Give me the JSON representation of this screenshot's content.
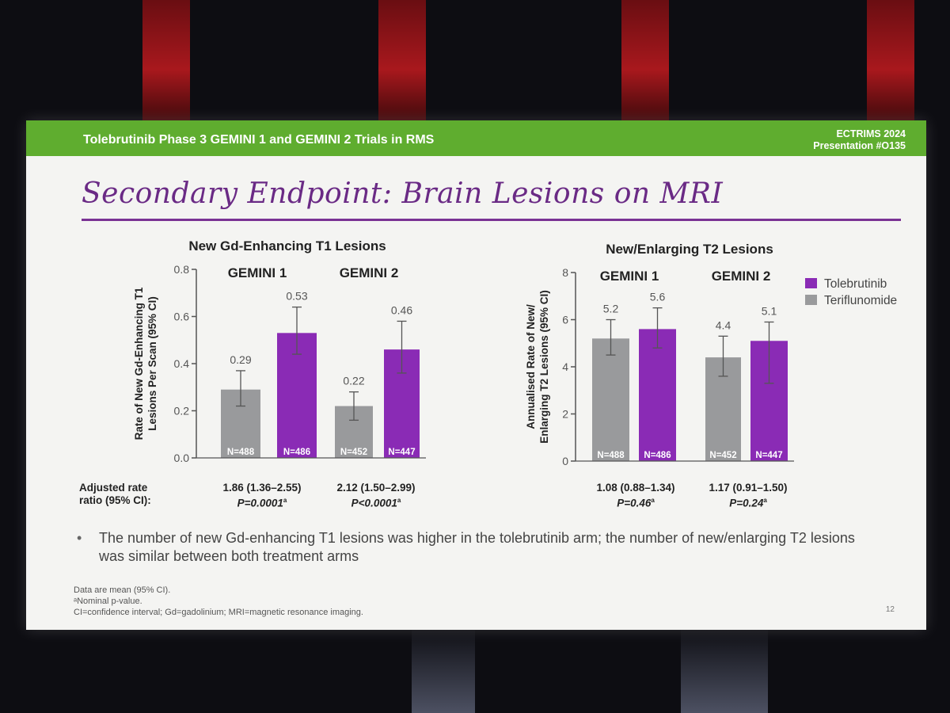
{
  "header": {
    "title": "Tolebrutinib Phase 3 GEMINI 1 and GEMINI 2 Trials in RMS",
    "conference": "ECTRIMS 2024",
    "presentation": "Presentation #O135"
  },
  "slide_title": "Secondary Endpoint: Brain Lesions on MRI",
  "colors": {
    "tolebrutinib": "#8a2bb5",
    "teriflunomide": "#999a9c",
    "header": "#5fad2f",
    "title": "#6a2a85"
  },
  "legend": [
    "Tolebrutinib",
    "Teriflunomide"
  ],
  "chart_data": [
    {
      "type": "bar",
      "title": "New Gd-Enhancing T1 Lesions",
      "ylabel": "Rate of New Gd-Enhancing T1 Lesions Per Scan (95% CI)",
      "ylim": [
        0,
        0.8
      ],
      "yticks": [
        "0.0",
        "0.2",
        "0.4",
        "0.6",
        "0.8"
      ],
      "groups": [
        "GEMINI 1",
        "GEMINI 2"
      ],
      "series": [
        {
          "name": "Teriflunomide",
          "values": [
            0.29,
            0.22
          ],
          "labels": [
            "0.29",
            "0.22"
          ],
          "ci_low": [
            0.22,
            0.16
          ],
          "ci_high": [
            0.37,
            0.28
          ],
          "n": [
            "N=488",
            "N=452"
          ]
        },
        {
          "name": "Tolebrutinib",
          "values": [
            0.53,
            0.46
          ],
          "labels": [
            "0.53",
            "0.46"
          ],
          "ci_low": [
            0.44,
            0.36
          ],
          "ci_high": [
            0.64,
            0.58
          ],
          "n": [
            "N=486",
            "N=447"
          ]
        }
      ]
    },
    {
      "type": "bar",
      "title": "New/Enlarging T2 Lesions",
      "ylabel": "Annualised Rate of New/ Enlarging T2 Lesions (95% CI)",
      "ylim": [
        0,
        8
      ],
      "yticks": [
        "0",
        "2",
        "4",
        "6",
        "8"
      ],
      "groups": [
        "GEMINI 1",
        "GEMINI 2"
      ],
      "series": [
        {
          "name": "Teriflunomide",
          "values": [
            5.2,
            4.4
          ],
          "labels": [
            "5.2",
            "4.4"
          ],
          "ci_low": [
            4.5,
            3.6
          ],
          "ci_high": [
            6.0,
            5.3
          ],
          "n": [
            "N=488",
            "N=452"
          ]
        },
        {
          "name": "Tolebrutinib",
          "values": [
            5.6,
            5.1
          ],
          "labels": [
            "5.6",
            "5.1"
          ],
          "ci_low": [
            4.8,
            3.3
          ],
          "ci_high": [
            6.5,
            5.9
          ],
          "n": [
            "N=486",
            "N=447"
          ]
        }
      ]
    }
  ],
  "ratios": {
    "label_line1": "Adjusted rate",
    "label_line2": "ratio (95% CI):",
    "items": [
      {
        "value": "1.86 (1.36–2.55)",
        "p": "P=0.0001"
      },
      {
        "value": "2.12 (1.50–2.99)",
        "p": "P<0.0001"
      },
      {
        "value": "1.08 (0.88–1.34)",
        "p": "P=0.46"
      },
      {
        "value": "1.17 (0.91–1.50)",
        "p": "P=0.24"
      }
    ],
    "p_superscript": "a"
  },
  "bullet": {
    "dot": "•",
    "text": "The number of new Gd-enhancing T1 lesions was higher in the tolebrutinib arm; the number of new/enlarging T2 lesions was similar between both treatment arms"
  },
  "footnotes": [
    "Data are mean (95% CI).",
    "ᵃNominal p-value.",
    "CI=confidence interval; Gd=gadolinium; MRI=magnetic resonance imaging."
  ],
  "page_number": "12"
}
